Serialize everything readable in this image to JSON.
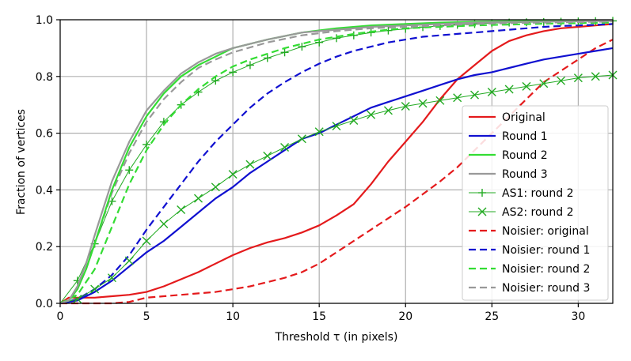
{
  "chart_data": {
    "type": "line",
    "title": "",
    "xlabel": "Threshold τ (in pixels)",
    "ylabel": "Fraction of vertices",
    "xlim": [
      0,
      32
    ],
    "ylim": [
      0,
      1.0
    ],
    "grid": true,
    "legend_position": "lower right",
    "x_ticks": [
      0,
      5,
      10,
      15,
      20,
      25,
      30
    ],
    "y_ticks": [
      0.0,
      0.2,
      0.4,
      0.6,
      0.8,
      1.0
    ],
    "x_tick_labels": [
      "0",
      "5",
      "10",
      "15",
      "20",
      "25",
      "30"
    ],
    "y_tick_labels": [
      "0.0",
      "0.2",
      "0.4",
      "0.6",
      "0.8",
      "1.0"
    ],
    "series": [
      {
        "name": "Original",
        "color": "#e41a1c",
        "style": "solid",
        "marker": "",
        "x": [
          0,
          0.5,
          1,
          2,
          3,
          4,
          5,
          6,
          7,
          8,
          9,
          10,
          11,
          12,
          13,
          14,
          15,
          16,
          17,
          18,
          19,
          20,
          21,
          22,
          23,
          24,
          25,
          26,
          27,
          28,
          29,
          30,
          31,
          32
        ],
        "y": [
          0.0,
          0.02,
          0.02,
          0.02,
          0.025,
          0.03,
          0.04,
          0.06,
          0.085,
          0.11,
          0.14,
          0.17,
          0.195,
          0.215,
          0.23,
          0.25,
          0.275,
          0.31,
          0.35,
          0.42,
          0.5,
          0.57,
          0.64,
          0.72,
          0.79,
          0.84,
          0.89,
          0.925,
          0.945,
          0.96,
          0.97,
          0.975,
          0.98,
          0.985
        ]
      },
      {
        "name": "Round 1",
        "color": "#1010d0",
        "style": "solid",
        "marker": "",
        "x": [
          0,
          1,
          2,
          3,
          4,
          5,
          6,
          7,
          8,
          9,
          10,
          11,
          12,
          13,
          14,
          15,
          16,
          17,
          18,
          19,
          20,
          21,
          22,
          23,
          24,
          25,
          26,
          27,
          28,
          29,
          30,
          31,
          32
        ],
        "y": [
          0.0,
          0.01,
          0.04,
          0.08,
          0.13,
          0.18,
          0.22,
          0.27,
          0.32,
          0.37,
          0.41,
          0.46,
          0.5,
          0.54,
          0.58,
          0.6,
          0.63,
          0.66,
          0.69,
          0.71,
          0.73,
          0.75,
          0.77,
          0.79,
          0.805,
          0.815,
          0.83,
          0.845,
          0.86,
          0.87,
          0.88,
          0.89,
          0.9
        ]
      },
      {
        "name": "Round 2",
        "color": "#33dd33",
        "style": "solid",
        "marker": "",
        "x": [
          0,
          0.5,
          1,
          1.5,
          2,
          3,
          4,
          5,
          6,
          7,
          8,
          9,
          10,
          12,
          14,
          16,
          18,
          20,
          22,
          24,
          26,
          28,
          30,
          32
        ],
        "y": [
          0.0,
          0.01,
          0.05,
          0.12,
          0.21,
          0.4,
          0.55,
          0.66,
          0.74,
          0.8,
          0.84,
          0.87,
          0.9,
          0.93,
          0.955,
          0.97,
          0.98,
          0.985,
          0.99,
          0.993,
          0.995,
          0.996,
          0.997,
          0.998
        ]
      },
      {
        "name": "Round 3",
        "color": "#999999",
        "style": "solid",
        "marker": "",
        "x": [
          0,
          0.5,
          1,
          1.5,
          2,
          3,
          4,
          5,
          6,
          7,
          8,
          9,
          10,
          12,
          14,
          16,
          18,
          20,
          22,
          24,
          26,
          28,
          30,
          32
        ],
        "y": [
          0.0,
          0.01,
          0.06,
          0.14,
          0.24,
          0.43,
          0.57,
          0.68,
          0.75,
          0.81,
          0.85,
          0.88,
          0.9,
          0.93,
          0.955,
          0.965,
          0.975,
          0.98,
          0.985,
          0.99,
          0.992,
          0.994,
          0.995,
          0.996
        ]
      },
      {
        "name": "AS1: round 2",
        "color": "#22aa22",
        "style": "solid-thin",
        "marker": "+",
        "x": [
          0,
          1,
          2,
          3,
          4,
          5,
          6,
          7,
          8,
          9,
          10,
          11,
          12,
          13,
          14,
          15,
          16,
          17,
          18,
          19,
          20,
          21,
          22,
          23,
          24,
          25,
          26,
          27,
          28,
          29,
          30,
          31,
          32
        ],
        "y": [
          0.0,
          0.08,
          0.21,
          0.36,
          0.47,
          0.56,
          0.64,
          0.7,
          0.745,
          0.785,
          0.815,
          0.84,
          0.865,
          0.885,
          0.905,
          0.92,
          0.935,
          0.945,
          0.955,
          0.962,
          0.968,
          0.974,
          0.978,
          0.982,
          0.985,
          0.988,
          0.99,
          0.991,
          0.992,
          0.993,
          0.994,
          0.995,
          0.996
        ]
      },
      {
        "name": "AS2: round 2",
        "color": "#22aa22",
        "style": "solid-thin",
        "marker": "x",
        "x": [
          0,
          1,
          2,
          3,
          4,
          5,
          6,
          7,
          8,
          9,
          10,
          11,
          12,
          13,
          14,
          15,
          16,
          17,
          18,
          19,
          20,
          21,
          22,
          23,
          24,
          25,
          26,
          27,
          28,
          29,
          30,
          31,
          32
        ],
        "y": [
          0.0,
          0.015,
          0.05,
          0.09,
          0.15,
          0.22,
          0.28,
          0.33,
          0.37,
          0.41,
          0.455,
          0.49,
          0.52,
          0.55,
          0.58,
          0.605,
          0.625,
          0.645,
          0.665,
          0.68,
          0.695,
          0.705,
          0.715,
          0.725,
          0.735,
          0.745,
          0.755,
          0.765,
          0.775,
          0.785,
          0.795,
          0.8,
          0.805
        ]
      },
      {
        "name": "Noisier: original",
        "color": "#e41a1c",
        "style": "dashed",
        "marker": "",
        "x": [
          0,
          1,
          2,
          3,
          4,
          5,
          6,
          7,
          8,
          9,
          10,
          11,
          12,
          13,
          14,
          15,
          16,
          17,
          18,
          19,
          20,
          21,
          22,
          23,
          24,
          25,
          26,
          27,
          28,
          29,
          30,
          31,
          32
        ],
        "y": [
          0.0,
          0.0,
          0.0,
          0.0,
          0.005,
          0.02,
          0.025,
          0.03,
          0.035,
          0.04,
          0.05,
          0.06,
          0.075,
          0.09,
          0.11,
          0.14,
          0.18,
          0.22,
          0.26,
          0.3,
          0.34,
          0.385,
          0.43,
          0.48,
          0.54,
          0.6,
          0.66,
          0.72,
          0.78,
          0.82,
          0.86,
          0.9,
          0.93
        ]
      },
      {
        "name": "Noisier: round 1",
        "color": "#1010d0",
        "style": "dashed",
        "marker": "",
        "x": [
          0,
          1,
          2,
          3,
          4,
          5,
          6,
          7,
          8,
          9,
          10,
          11,
          12,
          13,
          14,
          15,
          16,
          17,
          18,
          19,
          20,
          21,
          22,
          23,
          24,
          25,
          26,
          27,
          28,
          29,
          30,
          31,
          32
        ],
        "y": [
          0.0,
          0.015,
          0.05,
          0.1,
          0.17,
          0.26,
          0.34,
          0.42,
          0.5,
          0.57,
          0.63,
          0.69,
          0.74,
          0.78,
          0.815,
          0.845,
          0.87,
          0.89,
          0.905,
          0.92,
          0.93,
          0.94,
          0.945,
          0.95,
          0.955,
          0.96,
          0.965,
          0.97,
          0.975,
          0.978,
          0.98,
          0.982,
          0.985
        ]
      },
      {
        "name": "Noisier: round 2",
        "color": "#33dd33",
        "style": "dashed",
        "marker": "",
        "x": [
          0,
          1,
          2,
          3,
          4,
          5,
          6,
          7,
          8,
          9,
          10,
          11,
          12,
          13,
          14,
          15,
          16,
          17,
          18,
          19,
          20,
          22,
          24,
          26,
          28,
          30,
          32
        ],
        "y": [
          0.0,
          0.03,
          0.12,
          0.27,
          0.42,
          0.54,
          0.63,
          0.7,
          0.755,
          0.8,
          0.835,
          0.86,
          0.88,
          0.9,
          0.915,
          0.93,
          0.94,
          0.95,
          0.958,
          0.965,
          0.97,
          0.975,
          0.98,
          0.983,
          0.986,
          0.988,
          0.99
        ]
      },
      {
        "name": "Noisier: round 3",
        "color": "#999999",
        "style": "dashed",
        "marker": "",
        "x": [
          0,
          0.5,
          1,
          1.5,
          2,
          3,
          4,
          5,
          6,
          7,
          8,
          9,
          10,
          12,
          14,
          16,
          18,
          20,
          22,
          24,
          26,
          28,
          30,
          32
        ],
        "y": [
          0.0,
          0.01,
          0.05,
          0.12,
          0.21,
          0.39,
          0.53,
          0.64,
          0.72,
          0.78,
          0.83,
          0.86,
          0.885,
          0.92,
          0.945,
          0.96,
          0.97,
          0.975,
          0.98,
          0.985,
          0.988,
          0.99,
          0.992,
          0.994
        ]
      }
    ]
  }
}
